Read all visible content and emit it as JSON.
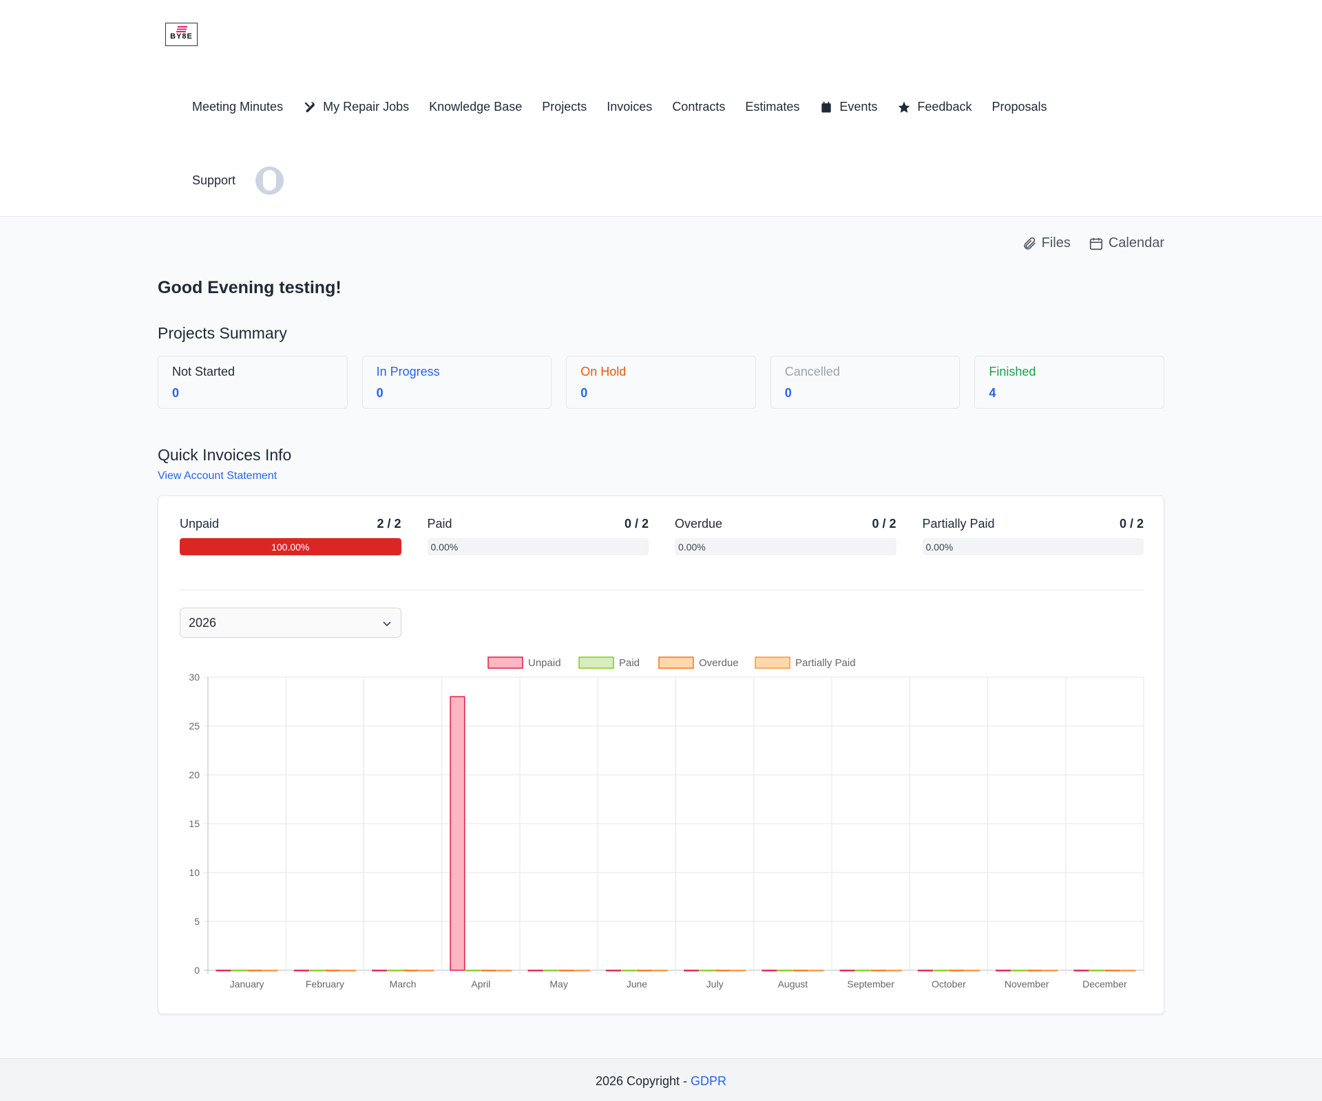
{
  "logo": {
    "text": "BY8E"
  },
  "nav": {
    "row1": [
      {
        "label": "Meeting Minutes",
        "icon": ""
      },
      {
        "label": "My Repair Jobs",
        "icon": "tools-icon"
      },
      {
        "label": "Knowledge Base",
        "icon": ""
      },
      {
        "label": "Projects",
        "icon": ""
      },
      {
        "label": "Invoices",
        "icon": ""
      },
      {
        "label": "Contracts",
        "icon": ""
      },
      {
        "label": "Estimates",
        "icon": ""
      },
      {
        "label": "Events",
        "icon": "calendar-icon"
      },
      {
        "label": "Feedback",
        "icon": "star-icon"
      },
      {
        "label": "Proposals",
        "icon": ""
      }
    ],
    "support": "Support"
  },
  "toplinks": {
    "files": "Files",
    "calendar": "Calendar"
  },
  "greeting": "Good Evening testing!",
  "projects": {
    "title": "Projects Summary",
    "cards": [
      {
        "label": "Not Started",
        "value": "0",
        "color": "#1f2937"
      },
      {
        "label": "In Progress",
        "value": "0",
        "color": "#2563eb"
      },
      {
        "label": "On Hold",
        "value": "0",
        "color": "#ea580c"
      },
      {
        "label": "Cancelled",
        "value": "0",
        "color": "#9ca3af"
      },
      {
        "label": "Finished",
        "value": "4",
        "color": "#16a34a"
      }
    ]
  },
  "invoices": {
    "title": "Quick Invoices Info",
    "statement_link": "View Account Statement",
    "stats": [
      {
        "label": "Unpaid",
        "count": "2 / 2",
        "percent": "100.00%",
        "fraction": 1
      },
      {
        "label": "Paid",
        "count": "0 / 2",
        "percent": "0.00%",
        "fraction": 0
      },
      {
        "label": "Overdue",
        "count": "0 / 2",
        "percent": "0.00%",
        "fraction": 0
      },
      {
        "label": "Partially Paid",
        "count": "0 / 2",
        "percent": "0.00%",
        "fraction": 0
      }
    ],
    "year": "2026"
  },
  "chart_data": {
    "type": "bar",
    "categories": [
      "January",
      "February",
      "March",
      "April",
      "May",
      "June",
      "July",
      "August",
      "September",
      "October",
      "November",
      "December"
    ],
    "series": [
      {
        "name": "Unpaid",
        "values": [
          0,
          0,
          0,
          28,
          0,
          0,
          0,
          0,
          0,
          0,
          0,
          0
        ],
        "fill": "#ffb6c1",
        "stroke": "#e11d48"
      },
      {
        "name": "Paid",
        "values": [
          0,
          0,
          0,
          0,
          0,
          0,
          0,
          0,
          0,
          0,
          0,
          0
        ],
        "fill": "#d9ecc0",
        "stroke": "#84cc16"
      },
      {
        "name": "Overdue",
        "values": [
          0,
          0,
          0,
          0,
          0,
          0,
          0,
          0,
          0,
          0,
          0,
          0
        ],
        "fill": "#fed7aa",
        "stroke": "#f97316"
      },
      {
        "name": "Partially Paid",
        "values": [
          0,
          0,
          0,
          0,
          0,
          0,
          0,
          0,
          0,
          0,
          0,
          0
        ],
        "fill": "#fed7aa",
        "stroke": "#fb923c"
      }
    ],
    "ylim": [
      0,
      30
    ],
    "yticks": [
      0,
      5,
      10,
      15,
      20,
      25,
      30
    ],
    "legend": "top-center",
    "grid": true
  },
  "footer": {
    "text": "2026 Copyright - ",
    "link": "GDPR"
  }
}
